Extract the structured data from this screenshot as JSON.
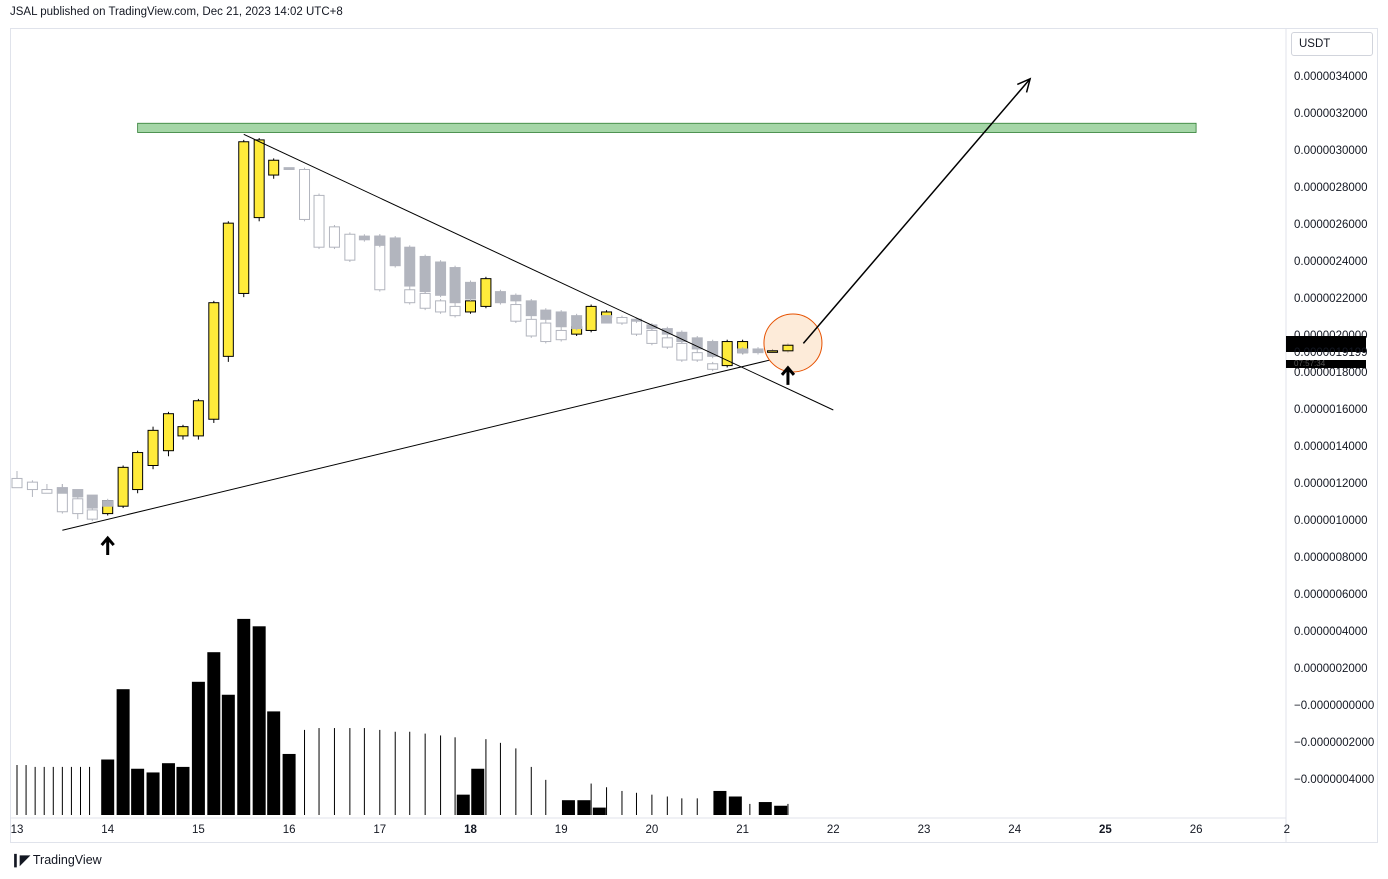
{
  "header": {
    "published": "JSAL published on TradingView.com, Dec 21, 2023 14:02 UTC+8"
  },
  "currency": "USDT",
  "price_axis": {
    "labels": [
      "0.0000034000",
      "0.0000032000",
      "0.0000030000",
      "0.0000028000",
      "0.0000026000",
      "0.0000024000",
      "0.0000022000",
      "0.0000020000",
      "0.0000018000",
      "0.0000016000",
      "0.0000014000",
      "0.0000012000",
      "0.0000010000",
      "0.0000008000",
      "0.0000006000",
      "0.0000004000",
      "0.0000002000",
      "−0.0000000000",
      "−0.0000002000",
      "−0.0000004000"
    ],
    "current_price": "0.0000019199",
    "current_countdown": "07:57:34"
  },
  "time_axis": {
    "labels": [
      "13",
      "14",
      "15",
      "16",
      "17",
      "18",
      "19",
      "20",
      "21",
      "22",
      "23",
      "24",
      "25",
      "26",
      "2"
    ],
    "bold": [
      "18",
      "25"
    ]
  },
  "footer": {
    "brand": "TradingView",
    "logo_icon": "tradingview-logo-icon"
  },
  "colors": {
    "bull": "#ffeb3b",
    "bear": "#b2b5be",
    "hollow": "#ffffff",
    "zone": "#a5d6a7",
    "zone_border": "#2e7d32",
    "circle_fill": "#fce4cc",
    "circle_border": "#e65100",
    "volume": "#000000"
  },
  "chart_data": {
    "type": "candlestick",
    "title": "",
    "ylim": [
      8e-07,
      3.5e-06
    ],
    "candles": [
      {
        "t": 13.0,
        "o": 1.23e-06,
        "h": 1.27e-06,
        "l": 1.2e-06,
        "c": 1.18e-06,
        "style": "hollow"
      },
      {
        "t": 13.17,
        "o": 1.17e-06,
        "h": 1.22e-06,
        "l": 1.13e-06,
        "c": 1.21e-06,
        "style": "hollow"
      },
      {
        "t": 13.33,
        "o": 1.17e-06,
        "h": 1.2e-06,
        "l": 1.15e-06,
        "c": 1.15e-06,
        "style": "hollow"
      },
      {
        "t": 13.5,
        "o": 1.18e-06,
        "h": 1.2e-06,
        "l": 1.04e-06,
        "c": 1.05e-06,
        "style": "hollow"
      },
      {
        "t": 13.5,
        "o": 1.18e-06,
        "h": 1.2e-06,
        "l": 1.15e-06,
        "c": 1.15e-06,
        "style": "bear"
      },
      {
        "t": 13.67,
        "o": 1.12e-06,
        "h": 1.15e-06,
        "l": 1.01e-06,
        "c": 1.04e-06,
        "style": "hollow"
      },
      {
        "t": 13.67,
        "o": 1.17e-06,
        "h": 1.17e-06,
        "l": 1.13e-06,
        "c": 1.13e-06,
        "style": "bear"
      },
      {
        "t": 13.83,
        "o": 1.06e-06,
        "h": 1.08e-06,
        "l": 1e-06,
        "c": 1.01e-06,
        "style": "hollow"
      },
      {
        "t": 13.83,
        "o": 1.14e-06,
        "h": 1.14e-06,
        "l": 1.07e-06,
        "c": 1.07e-06,
        "style": "bear"
      },
      {
        "t": 14.0,
        "o": 1.04e-06,
        "h": 1.11e-06,
        "l": 1.03e-06,
        "c": 1.11e-06,
        "style": "bull"
      },
      {
        "t": 14.0,
        "o": 1.11e-06,
        "h": 1.12e-06,
        "l": 1.08e-06,
        "c": 1.08e-06,
        "style": "bear"
      },
      {
        "t": 14.17,
        "o": 1.08e-06,
        "h": 1.3e-06,
        "l": 1.07e-06,
        "c": 1.29e-06,
        "style": "bull"
      },
      {
        "t": 14.33,
        "o": 1.17e-06,
        "h": 1.38e-06,
        "l": 1.15e-06,
        "c": 1.37e-06,
        "style": "bull"
      },
      {
        "t": 14.5,
        "o": 1.3e-06,
        "h": 1.51e-06,
        "l": 1.28e-06,
        "c": 1.49e-06,
        "style": "bull"
      },
      {
        "t": 14.67,
        "o": 1.38e-06,
        "h": 1.59e-06,
        "l": 1.35e-06,
        "c": 1.58e-06,
        "style": "bull"
      },
      {
        "t": 14.83,
        "o": 1.46e-06,
        "h": 1.52e-06,
        "l": 1.44e-06,
        "c": 1.51e-06,
        "style": "bull"
      },
      {
        "t": 15.0,
        "o": 1.46e-06,
        "h": 1.66e-06,
        "l": 1.44e-06,
        "c": 1.65e-06,
        "style": "bull"
      },
      {
        "t": 15.17,
        "o": 1.55e-06,
        "h": 2.19e-06,
        "l": 1.53e-06,
        "c": 2.18e-06,
        "style": "bull"
      },
      {
        "t": 15.33,
        "o": 1.89e-06,
        "h": 2.62e-06,
        "l": 1.86e-06,
        "c": 2.61e-06,
        "style": "bull"
      },
      {
        "t": 15.5,
        "o": 2.23e-06,
        "h": 3.06e-06,
        "l": 2.21e-06,
        "c": 3.05e-06,
        "style": "bull"
      },
      {
        "t": 15.67,
        "o": 2.64e-06,
        "h": 3.07e-06,
        "l": 2.62e-06,
        "c": 3.06e-06,
        "style": "bull"
      },
      {
        "t": 15.83,
        "o": 2.87e-06,
        "h": 2.96e-06,
        "l": 2.85e-06,
        "c": 2.95e-06,
        "style": "bull"
      },
      {
        "t": 16.0,
        "o": 2.91e-06,
        "h": 2.91e-06,
        "l": 2.9e-06,
        "c": 2.9e-06,
        "style": "bear"
      },
      {
        "t": 16.17,
        "o": 2.9e-06,
        "h": 2.91e-06,
        "l": 2.62e-06,
        "c": 2.63e-06,
        "style": "hollow"
      },
      {
        "t": 16.33,
        "o": 2.76e-06,
        "h": 2.77e-06,
        "l": 2.47e-06,
        "c": 2.48e-06,
        "style": "hollow"
      },
      {
        "t": 16.5,
        "o": 2.59e-06,
        "h": 2.6e-06,
        "l": 2.47e-06,
        "c": 2.48e-06,
        "style": "hollow"
      },
      {
        "t": 16.67,
        "o": 2.55e-06,
        "h": 2.56e-06,
        "l": 2.4e-06,
        "c": 2.41e-06,
        "style": "hollow"
      },
      {
        "t": 16.83,
        "o": 2.54e-06,
        "h": 2.55e-06,
        "l": 2.51e-06,
        "c": 2.52e-06,
        "style": "bear"
      },
      {
        "t": 17.0,
        "o": 2.54e-06,
        "h": 2.55e-06,
        "l": 2.24e-06,
        "c": 2.25e-06,
        "style": "hollow"
      },
      {
        "t": 17.0,
        "o": 2.54e-06,
        "h": 2.55e-06,
        "l": 2.48e-06,
        "c": 2.49e-06,
        "style": "bear"
      },
      {
        "t": 17.17,
        "o": 2.53e-06,
        "h": 2.54e-06,
        "l": 2.37e-06,
        "c": 2.38e-06,
        "style": "bear"
      },
      {
        "t": 17.33,
        "o": 2.48e-06,
        "h": 2.49e-06,
        "l": 2.26e-06,
        "c": 2.27e-06,
        "style": "bear"
      },
      {
        "t": 17.33,
        "o": 2.25e-06,
        "h": 2.26e-06,
        "l": 2.17e-06,
        "c": 2.18e-06,
        "style": "hollow"
      },
      {
        "t": 17.5,
        "o": 2.43e-06,
        "h": 2.44e-06,
        "l": 2.23e-06,
        "c": 2.24e-06,
        "style": "bear"
      },
      {
        "t": 17.5,
        "o": 2.23e-06,
        "h": 2.24e-06,
        "l": 2.14e-06,
        "c": 2.15e-06,
        "style": "hollow"
      },
      {
        "t": 17.67,
        "o": 2.4e-06,
        "h": 2.41e-06,
        "l": 2.21e-06,
        "c": 2.22e-06,
        "style": "bear"
      },
      {
        "t": 17.67,
        "o": 2.19e-06,
        "h": 2.2e-06,
        "l": 2.12e-06,
        "c": 2.13e-06,
        "style": "hollow"
      },
      {
        "t": 17.83,
        "o": 2.37e-06,
        "h": 2.38e-06,
        "l": 2.17e-06,
        "c": 2.18e-06,
        "style": "bear"
      },
      {
        "t": 17.83,
        "o": 2.16e-06,
        "h": 2.17e-06,
        "l": 2.1e-06,
        "c": 2.11e-06,
        "style": "hollow"
      },
      {
        "t": 18.0,
        "o": 2.13e-06,
        "h": 2.2e-06,
        "l": 2.12e-06,
        "c": 2.19e-06,
        "style": "bull"
      },
      {
        "t": 18.0,
        "o": 2.29e-06,
        "h": 2.3e-06,
        "l": 2.19e-06,
        "c": 2.2e-06,
        "style": "bear"
      },
      {
        "t": 18.17,
        "o": 2.16e-06,
        "h": 2.32e-06,
        "l": 2.15e-06,
        "c": 2.31e-06,
        "style": "bull"
      },
      {
        "t": 18.33,
        "o": 2.24e-06,
        "h": 2.25e-06,
        "l": 2.17e-06,
        "c": 2.18e-06,
        "style": "bear"
      },
      {
        "t": 18.5,
        "o": 2.22e-06,
        "h": 2.23e-06,
        "l": 2.18e-06,
        "c": 2.19e-06,
        "style": "bear"
      },
      {
        "t": 18.5,
        "o": 2.17e-06,
        "h": 2.18e-06,
        "l": 2.07e-06,
        "c": 2.08e-06,
        "style": "hollow"
      },
      {
        "t": 18.67,
        "o": 2.19e-06,
        "h": 2.2e-06,
        "l": 2.1e-06,
        "c": 2.11e-06,
        "style": "bear"
      },
      {
        "t": 18.67,
        "o": 2.09e-06,
        "h": 2.1e-06,
        "l": 1.99e-06,
        "c": 2e-06,
        "style": "hollow"
      },
      {
        "t": 18.83,
        "o": 2.14e-06,
        "h": 2.15e-06,
        "l": 2.08e-06,
        "c": 2.09e-06,
        "style": "bear"
      },
      {
        "t": 18.83,
        "o": 2.07e-06,
        "h": 2.08e-06,
        "l": 1.96e-06,
        "c": 1.97e-06,
        "style": "hollow"
      },
      {
        "t": 19.0,
        "o": 2.13e-06,
        "h": 2.14e-06,
        "l": 2.04e-06,
        "c": 2.05e-06,
        "style": "bear"
      },
      {
        "t": 19.0,
        "o": 2.03e-06,
        "h": 2.04e-06,
        "l": 1.97e-06,
        "c": 1.98e-06,
        "style": "hollow"
      },
      {
        "t": 19.17,
        "o": 2.01e-06,
        "h": 2.06e-06,
        "l": 2e-06,
        "c": 2.05e-06,
        "style": "bull"
      },
      {
        "t": 19.17,
        "o": 2.11e-06,
        "h": 2.12e-06,
        "l": 2.03e-06,
        "c": 2.04e-06,
        "style": "bear"
      },
      {
        "t": 19.33,
        "o": 2.03e-06,
        "h": 2.17e-06,
        "l": 2.02e-06,
        "c": 2.16e-06,
        "style": "bull"
      },
      {
        "t": 19.5,
        "o": 2.1e-06,
        "h": 2.14e-06,
        "l": 2.09e-06,
        "c": 2.13e-06,
        "style": "bull"
      },
      {
        "t": 19.5,
        "o": 2.11e-06,
        "h": 2.11e-06,
        "l": 2.07e-06,
        "c": 2.07e-06,
        "style": "bear"
      },
      {
        "t": 19.67,
        "o": 2.1e-06,
        "h": 2.11e-06,
        "l": 2.06e-06,
        "c": 2.07e-06,
        "style": "hollow"
      },
      {
        "t": 19.83,
        "o": 2.09e-06,
        "h": 2.1e-06,
        "l": 2e-06,
        "c": 2.01e-06,
        "style": "hollow"
      },
      {
        "t": 19.83,
        "o": 2.09e-06,
        "h": 2.1e-06,
        "l": 2.07e-06,
        "c": 2.08e-06,
        "style": "bear"
      },
      {
        "t": 20.0,
        "o": 2.03e-06,
        "h": 2.04e-06,
        "l": 1.95e-06,
        "c": 1.96e-06,
        "style": "hollow"
      },
      {
        "t": 20.0,
        "o": 2.06e-06,
        "h": 2.07e-06,
        "l": 2.03e-06,
        "c": 2.04e-06,
        "style": "bear"
      },
      {
        "t": 20.17,
        "o": 1.99e-06,
        "h": 2e-06,
        "l": 1.93e-06,
        "c": 1.94e-06,
        "style": "hollow"
      },
      {
        "t": 20.17,
        "o": 2.04e-06,
        "h": 2.05e-06,
        "l": 2e-06,
        "c": 2.01e-06,
        "style": "bear"
      },
      {
        "t": 20.33,
        "o": 1.96e-06,
        "h": 1.97e-06,
        "l": 1.86e-06,
        "c": 1.87e-06,
        "style": "hollow"
      },
      {
        "t": 20.33,
        "o": 2.02e-06,
        "h": 2.03e-06,
        "l": 1.96e-06,
        "c": 1.97e-06,
        "style": "bear"
      },
      {
        "t": 20.5,
        "o": 1.91e-06,
        "h": 1.92e-06,
        "l": 1.86e-06,
        "c": 1.87e-06,
        "style": "hollow"
      },
      {
        "t": 20.5,
        "o": 1.99e-06,
        "h": 2e-06,
        "l": 1.92e-06,
        "c": 1.93e-06,
        "style": "bear"
      },
      {
        "t": 20.67,
        "o": 1.85e-06,
        "h": 1.86e-06,
        "l": 1.81e-06,
        "c": 1.82e-06,
        "style": "hollow"
      },
      {
        "t": 20.67,
        "o": 1.97e-06,
        "h": 1.98e-06,
        "l": 1.88e-06,
        "c": 1.89e-06,
        "style": "bear"
      },
      {
        "t": 20.83,
        "o": 1.84e-06,
        "h": 1.98e-06,
        "l": 1.83e-06,
        "c": 1.97e-06,
        "style": "bull"
      },
      {
        "t": 21.0,
        "o": 1.91e-06,
        "h": 1.98e-06,
        "l": 1.9e-06,
        "c": 1.97e-06,
        "style": "bull"
      },
      {
        "t": 21.0,
        "o": 1.93e-06,
        "h": 1.94e-06,
        "l": 1.9e-06,
        "c": 1.91e-06,
        "style": "bear"
      },
      {
        "t": 21.17,
        "o": 1.93e-06,
        "h": 1.94e-06,
        "l": 1.9e-06,
        "c": 1.91e-06,
        "style": "bear"
      },
      {
        "t": 21.33,
        "o": 1.92e-06,
        "h": 1.93e-06,
        "l": 1.91e-06,
        "c": 1.92e-06,
        "style": "bull"
      },
      {
        "t": 21.5,
        "o": 1.92e-06,
        "h": 1.96e-06,
        "l": 1.91e-06,
        "c": 1.95e-06,
        "style": "bull"
      }
    ],
    "volume": [
      {
        "t": 13.0,
        "v": 2.7e-07,
        "style": "line"
      },
      {
        "t": 13.1,
        "v": 2.7e-07,
        "style": "line"
      },
      {
        "t": 13.2,
        "v": 2.6e-07,
        "style": "line"
      },
      {
        "t": 13.3,
        "v": 2.6e-07,
        "style": "line"
      },
      {
        "t": 13.4,
        "v": 2.6e-07,
        "style": "line"
      },
      {
        "t": 13.5,
        "v": 2.6e-07,
        "style": "line"
      },
      {
        "t": 13.6,
        "v": 2.6e-07,
        "style": "line"
      },
      {
        "t": 13.7,
        "v": 2.6e-07,
        "style": "line"
      },
      {
        "t": 13.8,
        "v": 2.6e-07,
        "style": "line"
      },
      {
        "t": 14.0,
        "v": 3e-07,
        "style": "bar"
      },
      {
        "t": 14.17,
        "v": 6.8e-07,
        "style": "bar"
      },
      {
        "t": 14.33,
        "v": 2.5e-07,
        "style": "bar"
      },
      {
        "t": 14.5,
        "v": 2.3e-07,
        "style": "bar"
      },
      {
        "t": 14.67,
        "v": 2.8e-07,
        "style": "bar"
      },
      {
        "t": 14.83,
        "v": 2.6e-07,
        "style": "bar"
      },
      {
        "t": 15.0,
        "v": 7.2e-07,
        "style": "bar"
      },
      {
        "t": 15.17,
        "v": 8.8e-07,
        "style": "bar"
      },
      {
        "t": 15.33,
        "v": 6.5e-07,
        "style": "bar"
      },
      {
        "t": 15.5,
        "v": 1.06e-06,
        "style": "bar"
      },
      {
        "t": 15.67,
        "v": 1.02e-06,
        "style": "bar"
      },
      {
        "t": 15.83,
        "v": 5.6e-07,
        "style": "bar"
      },
      {
        "t": 16.0,
        "v": 3.3e-07,
        "style": "bar"
      },
      {
        "t": 16.17,
        "v": 4.6e-07,
        "style": "line"
      },
      {
        "t": 16.33,
        "v": 4.7e-07,
        "style": "line"
      },
      {
        "t": 16.5,
        "v": 4.7e-07,
        "style": "line"
      },
      {
        "t": 16.67,
        "v": 4.7e-07,
        "style": "line"
      },
      {
        "t": 16.83,
        "v": 4.7e-07,
        "style": "line"
      },
      {
        "t": 17.0,
        "v": 4.6e-07,
        "style": "line"
      },
      {
        "t": 17.17,
        "v": 4.5e-07,
        "style": "line"
      },
      {
        "t": 17.33,
        "v": 4.5e-07,
        "style": "line"
      },
      {
        "t": 17.5,
        "v": 4.4e-07,
        "style": "line"
      },
      {
        "t": 17.67,
        "v": 4.3e-07,
        "style": "line"
      },
      {
        "t": 17.83,
        "v": 4.2e-07,
        "style": "line"
      },
      {
        "t": 17.92,
        "v": 1.1e-07,
        "style": "bar"
      },
      {
        "t": 18.08,
        "v": 2.5e-07,
        "style": "bar"
      },
      {
        "t": 18.17,
        "v": 4.1e-07,
        "style": "line"
      },
      {
        "t": 18.33,
        "v": 3.9e-07,
        "style": "line"
      },
      {
        "t": 18.5,
        "v": 3.6e-07,
        "style": "line"
      },
      {
        "t": 18.67,
        "v": 2.6e-07,
        "style": "line"
      },
      {
        "t": 18.83,
        "v": 1.9e-07,
        "style": "line"
      },
      {
        "t": 19.08,
        "v": 8e-08,
        "style": "bar"
      },
      {
        "t": 19.25,
        "v": 8e-08,
        "style": "bar"
      },
      {
        "t": 19.33,
        "v": 1.7e-07,
        "style": "line"
      },
      {
        "t": 19.42,
        "v": 4e-08,
        "style": "bar"
      },
      {
        "t": 19.5,
        "v": 1.5e-07,
        "style": "line"
      },
      {
        "t": 19.67,
        "v": 1.3e-07,
        "style": "line"
      },
      {
        "t": 19.83,
        "v": 1.2e-07,
        "style": "line"
      },
      {
        "t": 20.0,
        "v": 1.1e-07,
        "style": "line"
      },
      {
        "t": 20.17,
        "v": 1e-07,
        "style": "line"
      },
      {
        "t": 20.33,
        "v": 9e-08,
        "style": "line"
      },
      {
        "t": 20.5,
        "v": 9e-08,
        "style": "line"
      },
      {
        "t": 20.75,
        "v": 1.3e-07,
        "style": "bar"
      },
      {
        "t": 20.92,
        "v": 1e-07,
        "style": "bar"
      },
      {
        "t": 21.08,
        "v": 6e-08,
        "style": "line"
      },
      {
        "t": 21.25,
        "v": 7e-08,
        "style": "bar"
      },
      {
        "t": 21.42,
        "v": 5e-08,
        "style": "bar"
      },
      {
        "t": 21.5,
        "v": 6e-08,
        "style": "line"
      }
    ],
    "drawings": {
      "resistance_zone": {
        "t1": 14.33,
        "t2": 26.0,
        "p1": 3.1e-06,
        "p2": 3.15e-06
      },
      "descending_trendline": {
        "t1": 15.5,
        "p1": 3.09e-06,
        "t2": 22.0,
        "p2": 1.6e-06
      },
      "ascending_trendline": {
        "t1": 13.5,
        "p1": 9.5e-07,
        "t2": 21.3,
        "p2": 1.87e-06
      },
      "breakout_arrow": {
        "t1": 21.67,
        "p1": 1.96e-06,
        "t2": 24.17,
        "p2": 3.39e-06
      },
      "highlight_circle": {
        "t": 21.5,
        "p": 1.93e-06
      },
      "up_arrows": [
        {
          "t": 14.0,
          "p": 8.7e-07
        },
        {
          "t": 21.5,
          "p": 1.79e-06
        }
      ]
    }
  }
}
